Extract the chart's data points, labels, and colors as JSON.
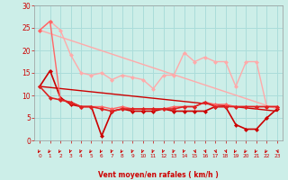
{
  "background_color": "#cceee8",
  "grid_color": "#aaddda",
  "xlabel": "Vent moyen/en rafales ( km/h )",
  "xlabel_color": "#cc0000",
  "tick_color": "#cc0000",
  "xlim_min": -0.5,
  "xlim_max": 23.5,
  "ylim_min": 0,
  "ylim_max": 30,
  "yticks": [
    0,
    5,
    10,
    15,
    20,
    25,
    30
  ],
  "xticks": [
    0,
    1,
    2,
    3,
    4,
    5,
    6,
    7,
    8,
    9,
    10,
    11,
    12,
    13,
    14,
    15,
    16,
    17,
    18,
    19,
    20,
    21,
    22,
    23
  ],
  "series": [
    {
      "x": [
        0,
        1,
        2,
        3,
        4,
        5,
        6,
        7,
        8,
        9,
        10,
        11,
        12,
        13,
        14,
        15,
        16,
        17,
        18,
        19,
        20,
        21,
        22,
        23
      ],
      "y": [
        24.5,
        26.5,
        24.5,
        19.0,
        15.0,
        14.5,
        15.0,
        13.5,
        14.5,
        14.0,
        13.5,
        11.5,
        14.5,
        14.5,
        19.5,
        17.5,
        18.5,
        17.5,
        17.5,
        12.0,
        17.5,
        17.5,
        7.5,
        7.5
      ],
      "color": "#ffaaaa",
      "lw": 1.0,
      "marker": "D",
      "ms": 2.5
    },
    {
      "x": [
        0,
        1,
        2,
        3,
        4,
        5,
        6,
        7,
        8,
        9,
        10,
        11,
        12,
        13,
        14,
        15,
        16,
        17,
        18,
        19,
        20,
        21,
        22,
        23
      ],
      "y": [
        12.0,
        15.5,
        9.5,
        8.0,
        7.5,
        7.5,
        1.0,
        6.5,
        7.0,
        6.5,
        6.5,
        6.5,
        7.0,
        6.5,
        6.5,
        6.5,
        6.5,
        7.5,
        7.5,
        3.5,
        2.5,
        2.5,
        5.0,
        7.0
      ],
      "color": "#cc0000",
      "lw": 1.2,
      "marker": "D",
      "ms": 2.5
    },
    {
      "x": [
        0,
        1,
        2,
        3,
        4,
        5,
        6,
        7,
        8,
        9,
        10,
        11,
        12,
        13,
        14,
        15,
        16,
        17,
        18,
        19,
        20,
        21,
        22,
        23
      ],
      "y": [
        24.5,
        26.5,
        9.0,
        8.5,
        7.5,
        7.5,
        7.5,
        7.0,
        7.5,
        7.0,
        7.0,
        7.0,
        7.0,
        7.5,
        7.5,
        7.5,
        8.5,
        8.0,
        8.0,
        7.5,
        7.5,
        7.5,
        7.5,
        7.5
      ],
      "color": "#ff6666",
      "lw": 1.0,
      "marker": "D",
      "ms": 2.5
    },
    {
      "x": [
        0,
        1,
        2,
        3,
        4,
        5,
        6,
        7,
        8,
        9,
        10,
        11,
        12,
        13,
        14,
        15,
        16,
        17,
        18,
        19,
        20,
        21,
        22,
        23
      ],
      "y": [
        12.0,
        9.5,
        9.0,
        8.5,
        7.5,
        7.5,
        7.0,
        6.5,
        7.0,
        7.0,
        7.0,
        7.0,
        7.0,
        7.0,
        7.5,
        7.5,
        8.5,
        7.5,
        7.5,
        7.5,
        7.5,
        7.5,
        7.5,
        7.5
      ],
      "color": "#dd2222",
      "lw": 1.2,
      "marker": "D",
      "ms": 2.5
    },
    {
      "x": [
        0,
        23
      ],
      "y": [
        24.5,
        7.0
      ],
      "color": "#ffaaaa",
      "lw": 1.0,
      "marker": null,
      "ms": 0
    },
    {
      "x": [
        0,
        23
      ],
      "y": [
        12.0,
        6.5
      ],
      "color": "#cc0000",
      "lw": 1.0,
      "marker": null,
      "ms": 0
    }
  ],
  "arrow_angles_deg": [
    270,
    270,
    270,
    225,
    225,
    270,
    270,
    225,
    270,
    225,
    225,
    225,
    225,
    225,
    225,
    135,
    135,
    135,
    135,
    270,
    270,
    270,
    270,
    135
  ]
}
